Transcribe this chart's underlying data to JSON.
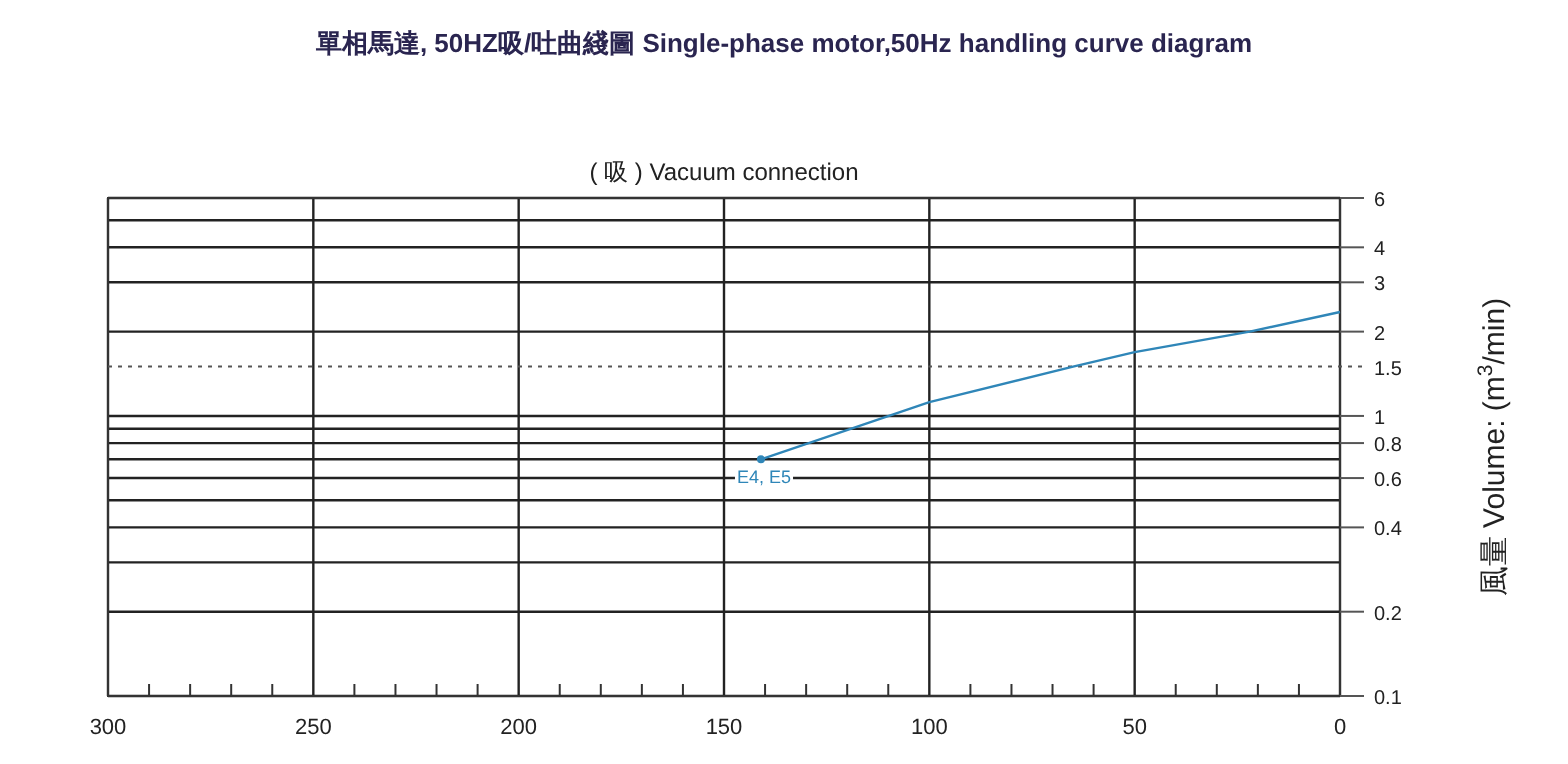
{
  "chart_data": {
    "type": "line",
    "title": "單相馬達, 50HZ吸/吐曲綫圖 Single-phase motor,50Hz handling curve diagram",
    "subtitle": "( 吸 ) Vacuum connection",
    "ylabel": "風量 Volume: (m$^{3}$/min)",
    "series": [
      {
        "color": "#2f86b8",
        "x": [
          141,
          100,
          65,
          50,
          22,
          0
        ],
        "values": [
          0.7,
          1.12,
          1.5,
          1.69,
          2,
          2.35
        ]
      }
    ],
    "annotations": [
      {
        "text": "E4, E5",
        "x": 141,
        "y": 0.7
      }
    ],
    "xlim": [
      300,
      0
    ],
    "ylim": [
      0.1,
      6
    ],
    "log": "y",
    "xticks": [
      300,
      {
        "value": 290,
        "label": null
      },
      {
        "value": 280,
        "label": null
      },
      {
        "value": 270,
        "label": null
      },
      {
        "value": 260,
        "label": null
      },
      250,
      {
        "value": 240,
        "label": null
      },
      {
        "value": 230,
        "label": null
      },
      {
        "value": 220,
        "label": null
      },
      {
        "value": 210,
        "label": null
      },
      200,
      {
        "value": 190,
        "label": null
      },
      {
        "value": 180,
        "label": null
      },
      {
        "value": 170,
        "label": null
      },
      {
        "value": 160,
        "label": null
      },
      150,
      {
        "value": 140,
        "label": null
      },
      {
        "value": 130,
        "label": null
      },
      {
        "value": 120,
        "label": null
      },
      {
        "value": 110,
        "label": null
      },
      100,
      {
        "value": 90,
        "label": null
      },
      {
        "value": 80,
        "label": null
      },
      {
        "value": 70,
        "label": null
      },
      {
        "value": 60,
        "label": null
      },
      50,
      {
        "value": 40,
        "label": null
      },
      {
        "value": 30,
        "label": null
      },
      {
        "value": 20,
        "label": null
      },
      {
        "value": 10,
        "label": null
      },
      0
    ],
    "yticks": [
      0.1,
      0.2,
      {
        "value": 0.3,
        "label": null
      },
      0.4,
      {
        "value": 0.5,
        "label": null
      },
      0.6,
      {
        "value": 0.7,
        "label": null
      },
      0.8,
      {
        "value": 0.9,
        "label": null
      },
      1,
      2,
      3,
      4,
      {
        "value": 5,
        "label": null
      },
      6
    ],
    "ref_lines": [
      {
        "axis": "y",
        "value": 1.5,
        "label": "1.5",
        "line_style": "dotted",
        "color": "#555555"
      }
    ],
    "grid": true,
    "marker": "none",
    "line_style": "solid"
  }
}
